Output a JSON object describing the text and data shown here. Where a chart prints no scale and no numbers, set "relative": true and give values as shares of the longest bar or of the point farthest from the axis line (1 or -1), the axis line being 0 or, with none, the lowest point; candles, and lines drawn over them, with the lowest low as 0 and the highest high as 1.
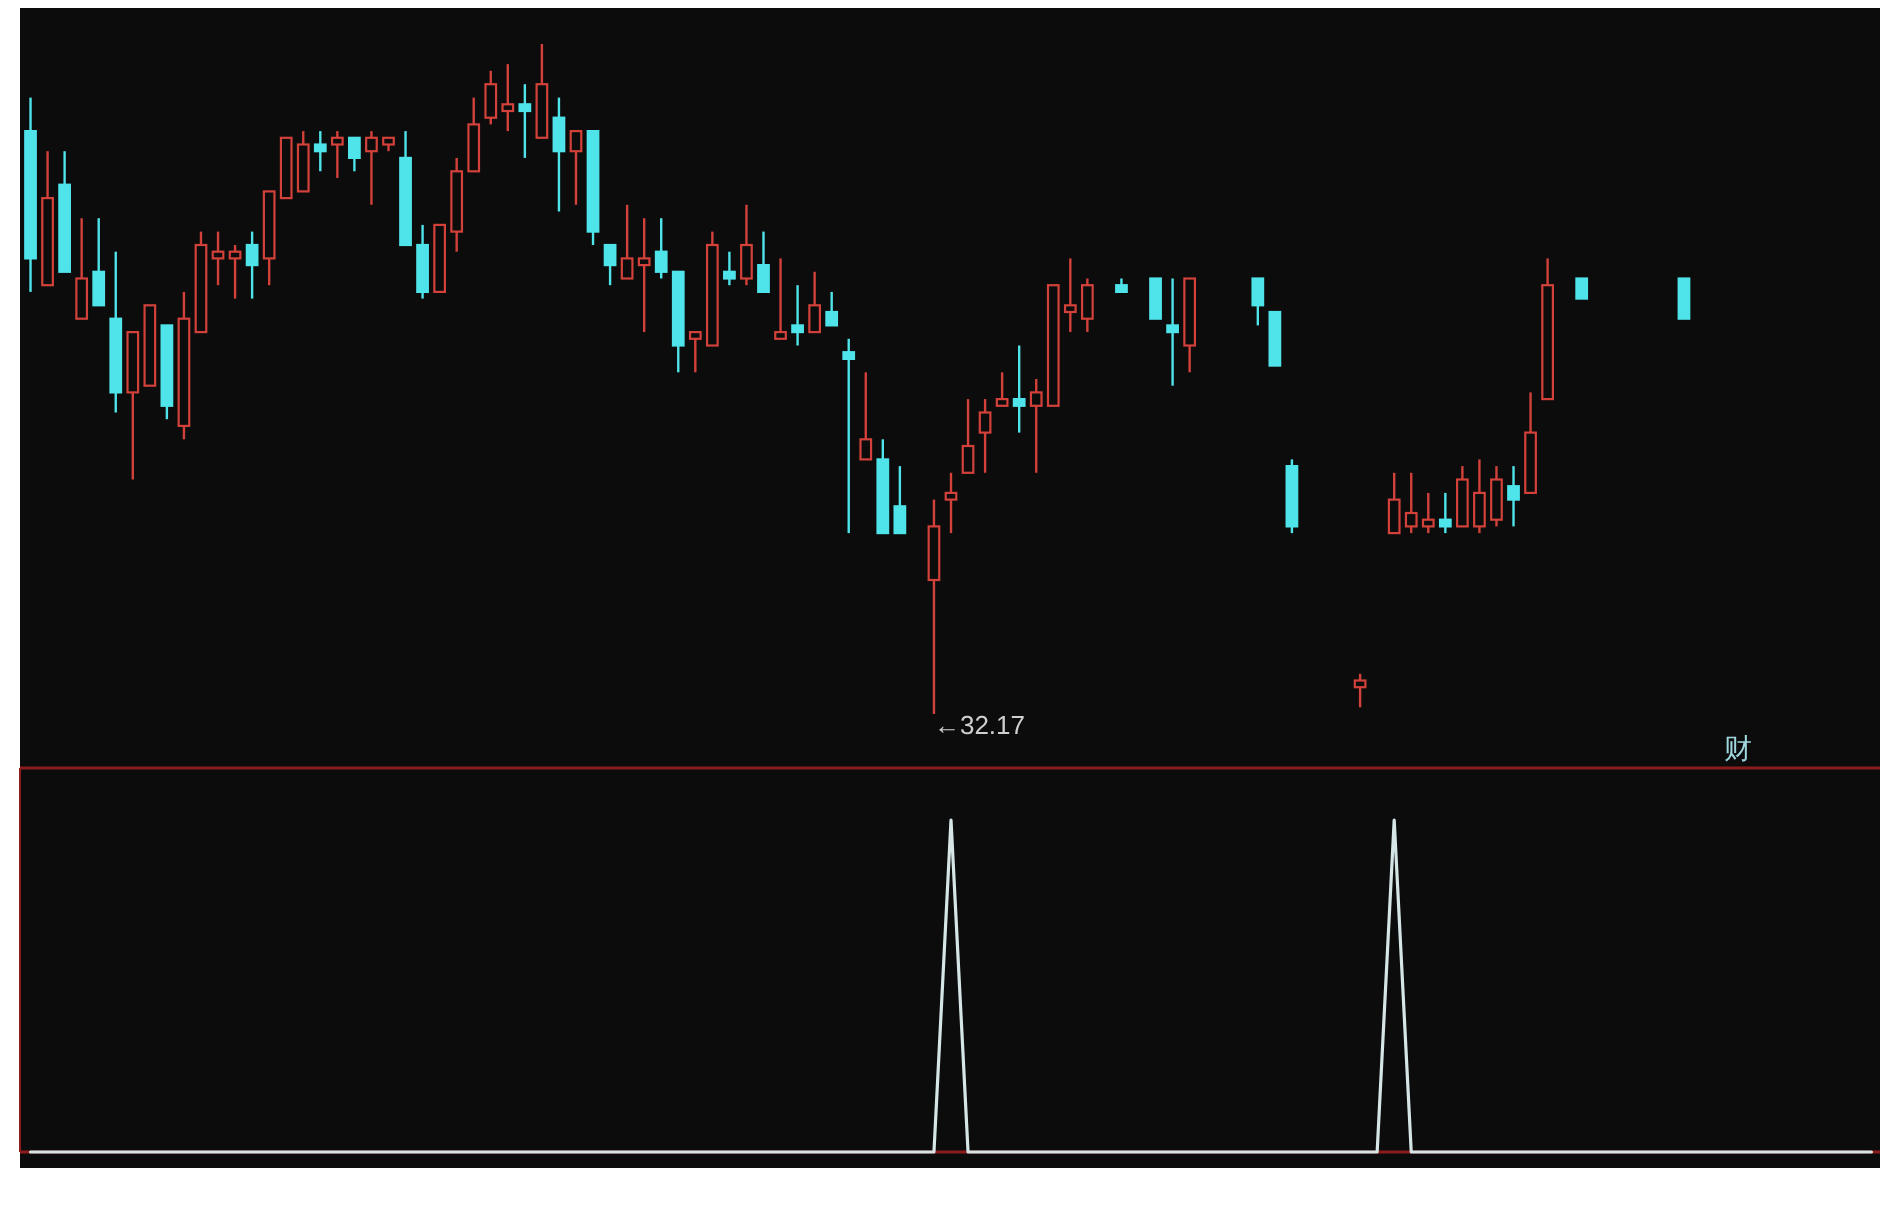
{
  "chart_data": [
    {
      "type": "candlestick",
      "relative": true,
      "categories": [
        null,
        null,
        null,
        null,
        null,
        null,
        null,
        null,
        null,
        null,
        null,
        null,
        null,
        null,
        null,
        null,
        null,
        null,
        null,
        null,
        null,
        null,
        null,
        null,
        null,
        null,
        null,
        null,
        null,
        null,
        null,
        null,
        null,
        null,
        null,
        null,
        null,
        null,
        null,
        null,
        null,
        null,
        null,
        null,
        null,
        null,
        null,
        null,
        null,
        null,
        null,
        null,
        null,
        null,
        null,
        null,
        null,
        null,
        null,
        null,
        null,
        null,
        null,
        null,
        null,
        null,
        null,
        null,
        null,
        null,
        null,
        null,
        null,
        null,
        null,
        null,
        null,
        null,
        null,
        null,
        null,
        null,
        null,
        null,
        null,
        null,
        null,
        null,
        null,
        null,
        null,
        null,
        null,
        null,
        null,
        null,
        null,
        null,
        null,
        null,
        null,
        null,
        null,
        null,
        null,
        null,
        null,
        null,
        null
      ],
      "ohlc": [
        [
          0.87,
          0.92,
          0.63,
          0.68
        ],
        [
          0.64,
          0.84,
          0.64,
          0.77
        ],
        [
          0.79,
          0.84,
          0.66,
          0.66
        ],
        [
          0.59,
          0.74,
          0.59,
          0.65
        ],
        [
          0.66,
          0.74,
          0.61,
          0.61
        ],
        [
          0.59,
          0.69,
          0.45,
          0.48
        ],
        [
          0.48,
          0.57,
          0.35,
          0.57
        ],
        [
          0.49,
          0.61,
          0.49,
          0.61
        ],
        [
          0.58,
          0.58,
          0.44,
          0.46
        ],
        [
          0.43,
          0.63,
          0.41,
          0.59
        ],
        [
          0.57,
          0.72,
          0.57,
          0.7
        ],
        [
          0.68,
          0.72,
          0.64,
          0.69
        ],
        [
          0.68,
          0.7,
          0.62,
          0.69
        ],
        [
          0.7,
          0.72,
          0.62,
          0.67
        ],
        [
          0.68,
          0.78,
          0.64,
          0.78
        ],
        [
          0.77,
          0.86,
          0.77,
          0.86
        ],
        [
          0.78,
          0.87,
          0.78,
          0.85
        ],
        [
          0.85,
          0.87,
          0.81,
          0.84
        ],
        [
          0.85,
          0.87,
          0.8,
          0.86
        ],
        [
          0.86,
          0.86,
          0.81,
          0.83
        ],
        [
          0.84,
          0.87,
          0.76,
          0.86
        ],
        [
          0.85,
          0.86,
          0.84,
          0.86
        ],
        [
          0.83,
          0.87,
          0.7,
          0.7
        ],
        [
          0.7,
          0.73,
          0.62,
          0.63
        ],
        [
          0.63,
          0.73,
          0.63,
          0.73
        ],
        [
          0.72,
          0.83,
          0.69,
          0.81
        ],
        [
          0.81,
          0.92,
          0.81,
          0.88
        ],
        [
          0.89,
          0.96,
          0.88,
          0.94
        ],
        [
          0.9,
          0.97,
          0.87,
          0.91
        ],
        [
          0.91,
          0.94,
          0.83,
          0.9
        ],
        [
          0.86,
          1.0,
          0.86,
          0.94
        ],
        [
          0.89,
          0.92,
          0.75,
          0.84
        ],
        [
          0.84,
          0.87,
          0.76,
          0.87
        ],
        [
          0.87,
          0.87,
          0.7,
          0.72
        ],
        [
          0.7,
          0.7,
          0.64,
          0.67
        ],
        [
          0.65,
          0.76,
          0.65,
          0.68
        ],
        [
          0.67,
          0.74,
          0.57,
          0.68
        ],
        [
          0.69,
          0.74,
          0.65,
          0.66
        ],
        [
          0.66,
          0.66,
          0.51,
          0.55
        ],
        [
          0.56,
          0.57,
          0.51,
          0.57
        ],
        [
          0.55,
          0.72,
          0.55,
          0.7
        ],
        [
          0.66,
          0.69,
          0.64,
          0.65
        ],
        [
          0.65,
          0.76,
          0.64,
          0.7
        ],
        [
          0.67,
          0.72,
          0.63,
          0.63
        ],
        [
          0.56,
          0.68,
          0.56,
          0.57
        ],
        [
          0.58,
          0.64,
          0.55,
          0.57
        ],
        [
          0.57,
          0.66,
          0.57,
          0.61
        ],
        [
          0.6,
          0.63,
          0.58,
          0.58
        ],
        [
          0.54,
          0.56,
          0.27,
          0.53
        ],
        [
          0.38,
          0.51,
          0.38,
          0.41
        ],
        [
          0.38,
          0.41,
          0.27,
          0.27
        ],
        [
          0.31,
          0.37,
          0.27,
          0.27
        ],
        null,
        [
          0.2,
          0.32,
          0,
          0.28
        ],
        [
          0.32,
          0.36,
          0.27,
          0.33
        ],
        [
          0.36,
          0.47,
          0.36,
          0.4
        ],
        [
          0.42,
          0.47,
          0.36,
          0.45
        ],
        [
          0.46,
          0.51,
          0.46,
          0.47
        ],
        [
          0.47,
          0.55,
          0.42,
          0.46
        ],
        [
          0.46,
          0.5,
          0.36,
          0.48
        ],
        [
          0.46,
          0.64,
          0.46,
          0.64
        ],
        [
          0.6,
          0.68,
          0.57,
          0.61
        ],
        [
          0.59,
          0.65,
          0.57,
          0.64
        ],
        null,
        [
          0.64,
          0.65,
          0.63,
          0.63
        ],
        null,
        [
          0.65,
          0.65,
          0.59,
          0.59
        ],
        [
          0.58,
          0.65,
          0.49,
          0.57
        ],
        [
          0.55,
          0.65,
          0.51,
          0.65
        ],
        null,
        null,
        null,
        [
          0.65,
          0.65,
          0.58,
          0.61
        ],
        [
          0.6,
          0.6,
          0.52,
          0.52
        ],
        [
          0.37,
          0.38,
          0.27,
          0.28
        ],
        null,
        null,
        null,
        [
          0.04,
          0.06,
          0.01,
          0.05
        ],
        null,
        [
          0.27,
          0.36,
          0.27,
          0.32
        ],
        [
          0.28,
          0.36,
          0.27,
          0.3
        ],
        [
          0.28,
          0.33,
          0.27,
          0.29
        ],
        [
          0.29,
          0.33,
          0.27,
          0.28
        ],
        [
          0.28,
          0.37,
          0.28,
          0.35
        ],
        [
          0.28,
          0.38,
          0.27,
          0.33
        ],
        [
          0.29,
          0.37,
          0.28,
          0.35
        ],
        [
          0.34,
          0.37,
          0.28,
          0.32
        ],
        [
          0.33,
          0.48,
          0.33,
          0.42
        ],
        [
          0.47,
          0.68,
          0.47,
          0.64
        ],
        null,
        [
          0.65,
          0.65,
          0.62,
          0.62
        ],
        null,
        null,
        null,
        null,
        null,
        [
          0.65,
          0.65,
          0.59,
          0.59
        ],
        null,
        null,
        null,
        null,
        null,
        null,
        null,
        null,
        null,
        null,
        null
      ],
      "colors": [
        "#4fe3ea",
        "#d2413a",
        "#4fe3ea",
        "#d2413a",
        "#4fe3ea",
        "#4fe3ea",
        "#d2413a",
        "#d2413a",
        "#4fe3ea",
        "#d2413a",
        "#d2413a",
        "#d2413a",
        "#d2413a",
        "#4fe3ea",
        "#d2413a",
        "#d2413a",
        "#d2413a",
        "#4fe3ea",
        "#d2413a",
        "#4fe3ea",
        "#d2413a",
        "#d2413a",
        "#4fe3ea",
        "#4fe3ea",
        "#d2413a",
        "#d2413a",
        "#d2413a",
        "#d2413a",
        "#d2413a",
        "#4fe3ea",
        "#d2413a",
        "#4fe3ea",
        "#d2413a",
        "#4fe3ea",
        "#4fe3ea",
        "#d2413a",
        "#d2413a",
        "#4fe3ea",
        "#4fe3ea",
        "#d2413a",
        "#d2413a",
        "#4fe3ea",
        "#d2413a",
        "#4fe3ea",
        "#d2413a",
        "#4fe3ea",
        "#d2413a",
        "#4fe3ea",
        "#4fe3ea",
        "#d2413a",
        "#4fe3ea",
        "#4fe3ea",
        null,
        "#d2413a",
        "#d2413a",
        "#d2413a",
        "#d2413a",
        "#d2413a",
        "#4fe3ea",
        "#d2413a",
        "#d2413a",
        "#d2413a",
        "#d2413a",
        null,
        "#4fe3ea",
        null,
        "#4fe3ea",
        "#4fe3ea",
        "#d2413a",
        null,
        null,
        null,
        "#4fe3ea",
        "#4fe3ea",
        "#4fe3ea",
        null,
        null,
        null,
        "#d2413a",
        null,
        "#d2413a",
        "#d2413a",
        "#d2413a",
        "#4fe3ea",
        "#d2413a",
        "#d2413a",
        "#d2413a",
        "#4fe3ea",
        "#d2413a",
        "#d2413a",
        null,
        "#4fe3ea",
        null,
        null,
        null,
        null,
        null,
        "#4fe3ea",
        null,
        null,
        null,
        null,
        null,
        null,
        null,
        null,
        null,
        null,
        null
      ],
      "annotations": [
        "←32.17",
        "财"
      ]
    },
    {
      "type": "line",
      "relative": true,
      "categories": [
        null,
        null,
        null,
        null,
        null,
        null,
        null,
        null,
        null,
        null,
        null,
        null,
        null,
        null,
        null,
        null,
        null,
        null,
        null,
        null,
        null,
        null,
        null,
        null,
        null,
        null,
        null,
        null,
        null,
        null,
        null,
        null,
        null,
        null,
        null,
        null,
        null,
        null,
        null,
        null,
        null,
        null,
        null,
        null,
        null,
        null,
        null,
        null,
        null,
        null,
        null,
        null,
        null,
        null,
        null,
        null,
        null,
        null,
        null,
        null,
        null,
        null,
        null,
        null,
        null,
        null,
        null,
        null,
        null,
        null,
        null,
        null,
        null,
        null,
        null,
        null,
        null,
        null,
        null,
        null,
        null,
        null,
        null,
        null,
        null,
        null,
        null,
        null,
        null,
        null,
        null,
        null,
        null,
        null,
        null,
        null,
        null,
        null,
        null,
        null,
        null,
        null,
        null,
        null,
        null,
        null,
        null,
        null,
        null
      ],
      "series": [
        {
          "color": "#d6e6e6",
          "values": [
            0,
            0,
            0,
            0,
            0,
            0,
            0,
            0,
            0,
            0,
            0,
            0,
            0,
            0,
            0,
            0,
            0,
            0,
            0,
            0,
            0,
            0,
            0,
            0,
            0,
            0,
            0,
            0,
            0,
            0,
            0,
            0,
            0,
            0,
            0,
            0,
            0,
            0,
            0,
            0,
            0,
            0,
            0,
            0,
            0,
            0,
            0,
            0,
            0,
            0,
            0,
            0,
            0,
            0,
            1,
            0,
            0,
            0,
            0,
            0,
            0,
            0,
            0,
            0,
            0,
            0,
            0,
            0,
            0,
            0,
            0,
            0,
            0,
            0,
            0,
            0,
            0,
            0,
            0,
            0,
            1,
            0,
            0,
            0,
            0,
            0,
            0,
            0,
            0,
            0,
            0,
            0,
            0,
            0,
            0,
            0,
            0,
            0,
            0,
            0,
            0,
            0,
            0,
            0,
            0,
            0,
            0,
            0,
            0
          ]
        }
      ]
    }
  ]
}
